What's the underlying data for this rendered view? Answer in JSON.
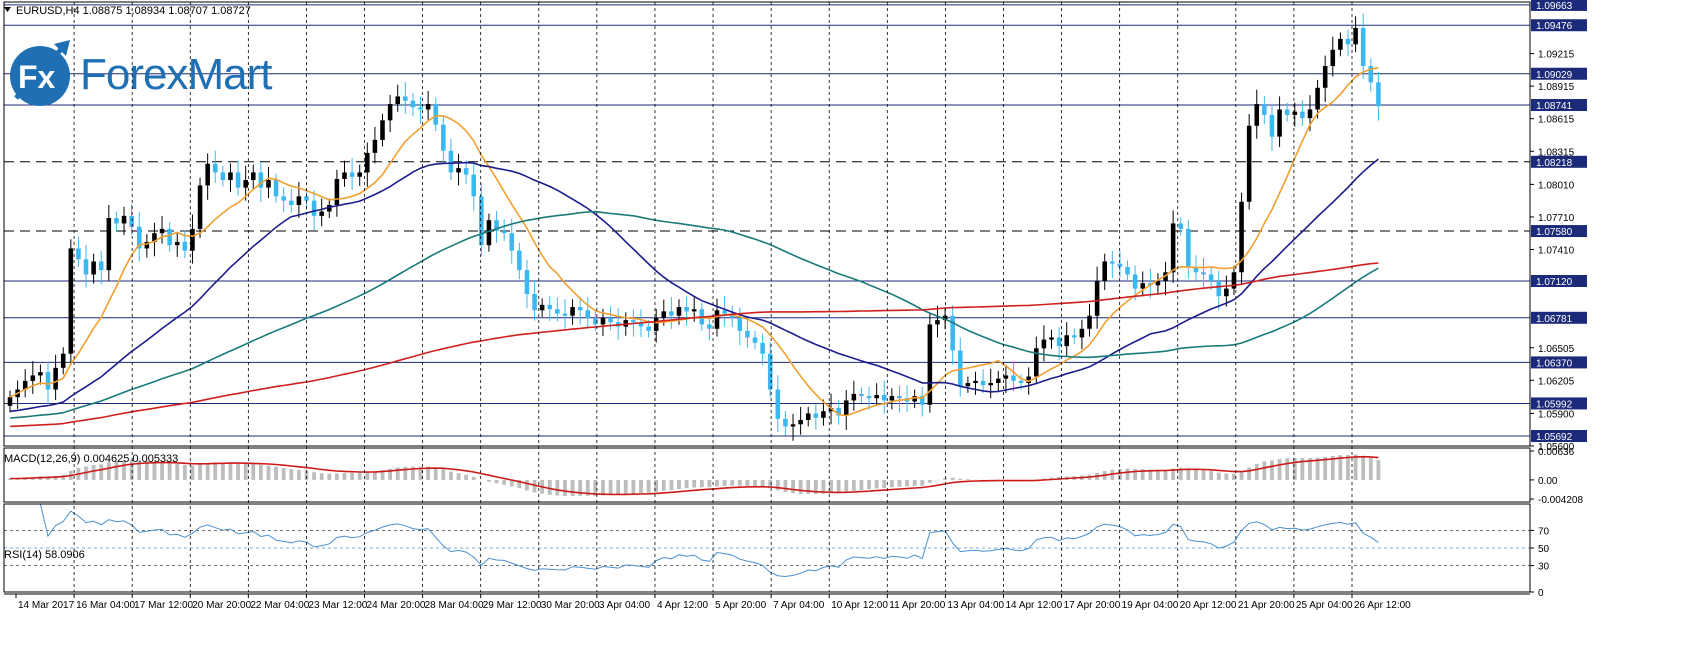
{
  "window": {
    "header": "EURUSD,H4  1.08875 1.08934 1.08707 1.08727",
    "macd_label": "MACD(12,26,9) 0.004625 0.005333",
    "rsi_label": "RSI(14) 58.0906"
  },
  "logo": {
    "text": "ForexMart",
    "mark": "Fx"
  },
  "colors": {
    "bull_candle": "#000000",
    "bear_candle": "#3cb8f0",
    "ma_fast": "#f0a030",
    "ma_blue": "#1c1c8c",
    "ma_teal": "#1a7a7a",
    "ma_red": "#d02020",
    "level_line": "#1c2a7a",
    "macd_signal": "#cc1a1a",
    "macd_hist": "#bdbdbd",
    "rsi_line": "#4a90d0"
  },
  "chart_data": [
    {
      "type": "candlestick",
      "symbol": "EURUSD",
      "timeframe": "H4",
      "ylim": [
        1.056,
        1.0969
      ],
      "price_axis_ticks": [
        1.09215,
        1.08915,
        1.08615,
        1.08315,
        1.0801,
        1.0771,
        1.0741,
        1.06505,
        1.06205,
        1.059,
        1.056
      ],
      "price_axis_ticks_labels": [
        "1.09215",
        "1.08915",
        "1.08615",
        "1.08315",
        "1.08010",
        "1.07710",
        "1.07410",
        "1.06505",
        "1.06205",
        "1.05900",
        "1.05600"
      ],
      "horizontal_levels": [
        {
          "value": 1.09663,
          "label": "1.09663",
          "style": "solid"
        },
        {
          "value": 1.09476,
          "label": "1.09476",
          "style": "solid"
        },
        {
          "value": 1.09029,
          "label": "1.09029",
          "style": "solid"
        },
        {
          "value": 1.08741,
          "label": "1.08741",
          "style": "solid"
        },
        {
          "value": 1.08218,
          "label": "1.08218",
          "style": "dashed"
        },
        {
          "value": 1.0758,
          "label": "1.07580",
          "style": "dashed"
        },
        {
          "value": 1.0712,
          "label": "1.07120",
          "style": "solid"
        },
        {
          "value": 1.06781,
          "label": "1.06781",
          "style": "solid"
        },
        {
          "value": 1.0637,
          "label": "1.06370",
          "style": "solid"
        },
        {
          "value": 1.05992,
          "label": "1.05992",
          "style": "solid"
        },
        {
          "value": 1.05692,
          "label": "1.05692",
          "style": "solid"
        }
      ],
      "x_labels": [
        "14 Mar 2017",
        "16 Mar 04:00",
        "17 Mar 12:00",
        "20 Mar 20:00",
        "22 Mar 04:00",
        "23 Mar 12:00",
        "24 Mar 20:00",
        "28 Mar 04:00",
        "29 Mar 12:00",
        "30 Mar 20:00",
        "3 Apr 04:00",
        "4 Apr 12:00",
        "5 Apr 20:00",
        "7 Apr 04:00",
        "10 Apr 12:00",
        "11 Apr 20:00",
        "13 Apr 04:00",
        "14 Apr 12:00",
        "17 Apr 20:00",
        "19 Apr 04:00",
        "20 Apr 12:00",
        "21 Apr 20:00",
        "25 Apr 04:00",
        "26 Apr 12:00"
      ],
      "close": [
        1.0605,
        1.0612,
        1.062,
        1.0625,
        1.0628,
        1.0612,
        1.0632,
        1.0645,
        1.0742,
        1.0732,
        1.0718,
        1.073,
        1.0722,
        1.077,
        1.0765,
        1.0772,
        1.0762,
        1.0742,
        1.0748,
        1.0756,
        1.076,
        1.0745,
        1.0748,
        1.074,
        1.076,
        1.08,
        1.082,
        1.0812,
        1.0805,
        1.0812,
        1.0798,
        1.0805,
        1.0812,
        1.0798,
        1.0805,
        1.079,
        1.0786,
        1.0782,
        1.079,
        1.0786,
        1.0772,
        1.0776,
        1.0782,
        1.0806,
        1.0812,
        1.0808,
        1.0812,
        1.083,
        1.0842,
        1.086,
        1.0875,
        1.0882,
        1.0878,
        1.0872,
        1.087,
        1.0875,
        1.0856,
        1.0832,
        1.0812,
        1.0816,
        1.081,
        1.079,
        1.0745,
        1.0768,
        1.0758,
        1.0756,
        1.074,
        1.0722,
        1.07,
        1.0685,
        1.069,
        1.0686,
        1.0682,
        1.068,
        1.0688,
        1.0685,
        1.0678,
        1.0672,
        1.0678,
        1.0674,
        1.067,
        1.0676,
        1.0674,
        1.067,
        1.0666,
        1.0678,
        1.0684,
        1.068,
        1.0688,
        1.0684,
        1.0686,
        1.0672,
        1.0668,
        1.0685,
        1.0682,
        1.0678,
        1.0666,
        1.066,
        1.0655,
        1.0645,
        1.0612,
        1.0585,
        1.0578,
        1.058,
        1.0584,
        1.059,
        1.0586,
        1.0592,
        1.0595,
        1.0588,
        1.0602,
        1.0608,
        1.0606,
        1.0604,
        1.0607,
        1.0602,
        1.0606,
        1.0604,
        1.0601,
        1.0606,
        1.0598,
        1.0672,
        1.0676,
        1.068,
        1.0648,
        1.0615,
        1.0618,
        1.062,
        1.0616,
        1.0618,
        1.0622,
        1.0625,
        1.062,
        1.0618,
        1.0624,
        1.065,
        1.0658,
        1.066,
        1.0652,
        1.0662,
        1.066,
        1.0668,
        1.068,
        1.0712,
        1.073,
        1.0728,
        1.0725,
        1.0718,
        1.0705,
        1.071,
        1.0708,
        1.0712,
        1.072,
        1.0765,
        1.076,
        1.0725,
        1.072,
        1.0718,
        1.0712,
        1.0698,
        1.0705,
        1.072,
        1.0785,
        1.0855,
        1.0875,
        1.0865,
        1.0845,
        1.087,
        1.0865,
        1.0868,
        1.0862,
        1.087,
        1.089,
        1.091,
        1.0925,
        1.0935,
        1.093,
        1.0945,
        1.091,
        1.0895,
        1.0873
      ]
    },
    {
      "type": "macd",
      "params": "12,26,9",
      "ylim": [
        -0.0042,
        0.00636
      ],
      "ticks": [
        0.00636,
        0.0,
        -0.0042
      ],
      "ticks_labels": [
        "0.00636",
        "0.00",
        "-0.004208"
      ],
      "hist_value": 0.004625,
      "signal_value": 0.005333
    },
    {
      "type": "rsi",
      "period": 14,
      "value": 58.0906,
      "ylim": [
        0,
        100
      ],
      "ticks": [
        70,
        50,
        30,
        0
      ],
      "ticks_labels": [
        "70",
        "50",
        "30",
        "0"
      ]
    }
  ]
}
